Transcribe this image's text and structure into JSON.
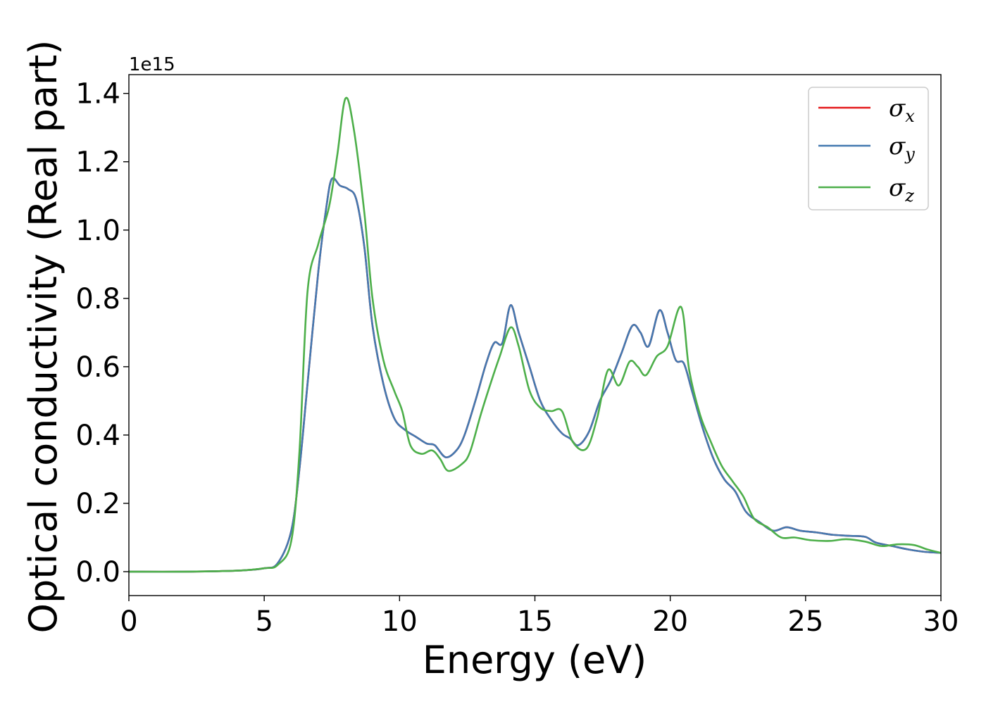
{
  "chart_data": {
    "type": "line",
    "xlabel": "Energy (eV)",
    "ylabel": "Optical conductivity (Real part)",
    "y_offset_text": "1e15",
    "y_scale": 1000000000000000.0,
    "xlim": [
      0,
      30
    ],
    "ylim": [
      -0.07,
      1.455
    ],
    "x_ticks": [
      0,
      5,
      10,
      15,
      20,
      25,
      30
    ],
    "x_tick_labels": [
      "0",
      "5",
      "10",
      "15",
      "20",
      "25",
      "30"
    ],
    "y_ticks": [
      0.0,
      0.2,
      0.4,
      0.6,
      0.8,
      1.0,
      1.2,
      1.4
    ],
    "y_tick_labels": [
      "0.0",
      "0.2",
      "0.4",
      "0.6",
      "0.8",
      "1.0",
      "1.2",
      "1.4"
    ],
    "grid": false,
    "legend_position": "top-right",
    "series": [
      {
        "name": "σx",
        "legend_base": "σ",
        "legend_sub": "x",
        "color": "#e41a1c",
        "points": [
          [
            0,
            0.0
          ],
          [
            2,
            0.0
          ],
          [
            4,
            0.003
          ],
          [
            5,
            0.01
          ],
          [
            5.5,
            0.025
          ],
          [
            6,
            0.12
          ],
          [
            6.3,
            0.3
          ],
          [
            6.6,
            0.55
          ],
          [
            7.0,
            0.88
          ],
          [
            7.3,
            1.07
          ],
          [
            7.5,
            1.15
          ],
          [
            7.8,
            1.13
          ],
          [
            8.1,
            1.12
          ],
          [
            8.4,
            1.09
          ],
          [
            8.7,
            0.95
          ],
          [
            9.0,
            0.72
          ],
          [
            9.4,
            0.55
          ],
          [
            9.8,
            0.45
          ],
          [
            10.2,
            0.415
          ],
          [
            10.6,
            0.395
          ],
          [
            11.0,
            0.375
          ],
          [
            11.3,
            0.37
          ],
          [
            11.7,
            0.335
          ],
          [
            12.1,
            0.355
          ],
          [
            12.4,
            0.4
          ],
          [
            12.8,
            0.5
          ],
          [
            13.2,
            0.61
          ],
          [
            13.5,
            0.67
          ],
          [
            13.8,
            0.67
          ],
          [
            14.1,
            0.78
          ],
          [
            14.4,
            0.7
          ],
          [
            14.8,
            0.6
          ],
          [
            15.2,
            0.5
          ],
          [
            15.6,
            0.445
          ],
          [
            16.0,
            0.405
          ],
          [
            16.3,
            0.39
          ],
          [
            16.6,
            0.37
          ],
          [
            17.0,
            0.41
          ],
          [
            17.4,
            0.5
          ],
          [
            17.8,
            0.56
          ],
          [
            18.2,
            0.64
          ],
          [
            18.6,
            0.72
          ],
          [
            18.9,
            0.7
          ],
          [
            19.2,
            0.66
          ],
          [
            19.6,
            0.765
          ],
          [
            19.9,
            0.7
          ],
          [
            20.2,
            0.62
          ],
          [
            20.5,
            0.61
          ],
          [
            20.8,
            0.53
          ],
          [
            21.2,
            0.42
          ],
          [
            21.6,
            0.33
          ],
          [
            22.0,
            0.27
          ],
          [
            22.4,
            0.235
          ],
          [
            22.8,
            0.175
          ],
          [
            23.3,
            0.145
          ],
          [
            23.8,
            0.12
          ],
          [
            24.3,
            0.13
          ],
          [
            24.8,
            0.12
          ],
          [
            25.4,
            0.115
          ],
          [
            26.0,
            0.108
          ],
          [
            26.6,
            0.105
          ],
          [
            27.2,
            0.102
          ],
          [
            27.6,
            0.085
          ],
          [
            28.2,
            0.075
          ],
          [
            28.8,
            0.065
          ],
          [
            29.4,
            0.058
          ],
          [
            30,
            0.055
          ]
        ]
      },
      {
        "name": "σy",
        "legend_base": "σ",
        "legend_sub": "y",
        "color": "#4479b0",
        "points": [
          [
            0,
            0.0
          ],
          [
            2,
            0.0
          ],
          [
            4,
            0.003
          ],
          [
            5,
            0.01
          ],
          [
            5.5,
            0.025
          ],
          [
            6,
            0.12
          ],
          [
            6.3,
            0.3
          ],
          [
            6.6,
            0.55
          ],
          [
            7.0,
            0.88
          ],
          [
            7.3,
            1.07
          ],
          [
            7.5,
            1.15
          ],
          [
            7.8,
            1.13
          ],
          [
            8.1,
            1.12
          ],
          [
            8.4,
            1.09
          ],
          [
            8.7,
            0.95
          ],
          [
            9.0,
            0.72
          ],
          [
            9.4,
            0.55
          ],
          [
            9.8,
            0.45
          ],
          [
            10.2,
            0.415
          ],
          [
            10.6,
            0.395
          ],
          [
            11.0,
            0.375
          ],
          [
            11.3,
            0.37
          ],
          [
            11.7,
            0.335
          ],
          [
            12.1,
            0.355
          ],
          [
            12.4,
            0.4
          ],
          [
            12.8,
            0.5
          ],
          [
            13.2,
            0.61
          ],
          [
            13.5,
            0.67
          ],
          [
            13.8,
            0.67
          ],
          [
            14.1,
            0.78
          ],
          [
            14.4,
            0.7
          ],
          [
            14.8,
            0.6
          ],
          [
            15.2,
            0.5
          ],
          [
            15.6,
            0.445
          ],
          [
            16.0,
            0.405
          ],
          [
            16.3,
            0.39
          ],
          [
            16.6,
            0.37
          ],
          [
            17.0,
            0.41
          ],
          [
            17.4,
            0.5
          ],
          [
            17.8,
            0.56
          ],
          [
            18.2,
            0.64
          ],
          [
            18.6,
            0.72
          ],
          [
            18.9,
            0.7
          ],
          [
            19.2,
            0.66
          ],
          [
            19.6,
            0.765
          ],
          [
            19.9,
            0.7
          ],
          [
            20.2,
            0.62
          ],
          [
            20.5,
            0.61
          ],
          [
            20.8,
            0.53
          ],
          [
            21.2,
            0.42
          ],
          [
            21.6,
            0.33
          ],
          [
            22.0,
            0.27
          ],
          [
            22.4,
            0.235
          ],
          [
            22.8,
            0.175
          ],
          [
            23.3,
            0.145
          ],
          [
            23.8,
            0.12
          ],
          [
            24.3,
            0.13
          ],
          [
            24.8,
            0.12
          ],
          [
            25.4,
            0.115
          ],
          [
            26.0,
            0.108
          ],
          [
            26.6,
            0.105
          ],
          [
            27.2,
            0.102
          ],
          [
            27.6,
            0.085
          ],
          [
            28.2,
            0.075
          ],
          [
            28.8,
            0.065
          ],
          [
            29.4,
            0.058
          ],
          [
            30,
            0.055
          ]
        ]
      },
      {
        "name": "σz",
        "legend_base": "σ",
        "legend_sub": "z",
        "color": "#4daf4a",
        "points": [
          [
            0,
            0.0
          ],
          [
            2,
            0.0
          ],
          [
            4,
            0.003
          ],
          [
            5,
            0.01
          ],
          [
            5.5,
            0.02
          ],
          [
            6,
            0.09
          ],
          [
            6.3,
            0.35
          ],
          [
            6.6,
            0.82
          ],
          [
            7.0,
            0.96
          ],
          [
            7.4,
            1.07
          ],
          [
            7.7,
            1.22
          ],
          [
            8.0,
            1.385
          ],
          [
            8.3,
            1.3
          ],
          [
            8.7,
            1.05
          ],
          [
            9.0,
            0.8
          ],
          [
            9.4,
            0.62
          ],
          [
            9.8,
            0.53
          ],
          [
            10.1,
            0.47
          ],
          [
            10.4,
            0.37
          ],
          [
            10.8,
            0.345
          ],
          [
            11.2,
            0.355
          ],
          [
            11.5,
            0.33
          ],
          [
            11.8,
            0.295
          ],
          [
            12.3,
            0.315
          ],
          [
            12.6,
            0.35
          ],
          [
            13.0,
            0.46
          ],
          [
            13.4,
            0.56
          ],
          [
            13.7,
            0.63
          ],
          [
            14.1,
            0.715
          ],
          [
            14.4,
            0.66
          ],
          [
            14.8,
            0.53
          ],
          [
            15.2,
            0.48
          ],
          [
            15.6,
            0.47
          ],
          [
            16.0,
            0.47
          ],
          [
            16.4,
            0.38
          ],
          [
            16.9,
            0.36
          ],
          [
            17.3,
            0.45
          ],
          [
            17.7,
            0.59
          ],
          [
            18.1,
            0.545
          ],
          [
            18.5,
            0.615
          ],
          [
            18.8,
            0.6
          ],
          [
            19.1,
            0.575
          ],
          [
            19.5,
            0.63
          ],
          [
            19.9,
            0.66
          ],
          [
            20.4,
            0.775
          ],
          [
            20.7,
            0.59
          ],
          [
            21.1,
            0.46
          ],
          [
            21.5,
            0.38
          ],
          [
            21.9,
            0.31
          ],
          [
            22.3,
            0.265
          ],
          [
            22.7,
            0.22
          ],
          [
            23.1,
            0.155
          ],
          [
            23.6,
            0.13
          ],
          [
            24.1,
            0.1
          ],
          [
            24.6,
            0.1
          ],
          [
            25.2,
            0.092
          ],
          [
            25.9,
            0.09
          ],
          [
            26.5,
            0.095
          ],
          [
            27.2,
            0.088
          ],
          [
            27.8,
            0.075
          ],
          [
            28.4,
            0.08
          ],
          [
            29.0,
            0.078
          ],
          [
            29.5,
            0.065
          ],
          [
            30,
            0.055
          ]
        ]
      }
    ]
  }
}
